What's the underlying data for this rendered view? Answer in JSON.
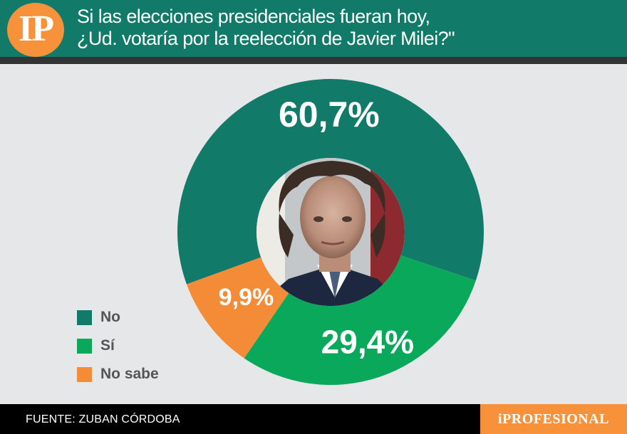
{
  "header": {
    "logo_text": "IP",
    "title_line1": "Si las elecciones presidenciales fueran hoy,",
    "title_line2": "¿Ud. votaría por la reelección de Javier Milei?\""
  },
  "chart_data": {
    "type": "pie",
    "style": "donut",
    "title": "Si las elecciones presidenciales fueran hoy, ¿Ud. votaría por la reelección de Javier Milei?\"",
    "legend_position": "bottom-left",
    "slices": [
      {
        "label": "No",
        "value": 60.7,
        "display": "60,7%",
        "color": "#127a68"
      },
      {
        "label": "Sí",
        "value": 29.4,
        "display": "29,4%",
        "color": "#0aa85a"
      },
      {
        "label": "No sabe",
        "value": 9.9,
        "display": "9,9%",
        "color": "#f48b37"
      }
    ]
  },
  "center_image": "portrait-photo",
  "footer": {
    "source": "FUENTE: ZUBAN CÓRDOBA",
    "brand": "iPROFESIONAL"
  }
}
